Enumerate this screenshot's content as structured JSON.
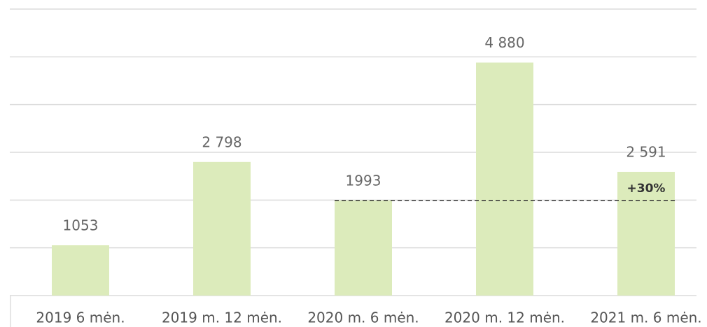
{
  "chart_data": {
    "type": "bar",
    "categories": [
      "2019 6 mėn.",
      "2019 m. 12 mėn.",
      "2020 m. 6 mėn.",
      "2020 m. 12 mėn.",
      "2021 m. 6 mėn."
    ],
    "values": [
      1053,
      2798,
      1993,
      4880,
      2591
    ],
    "value_labels": [
      "1053",
      "2 798",
      "1993",
      "4 880",
      "2 591"
    ],
    "color": "#dcebbb",
    "ylim": [
      0,
      6000
    ],
    "yticks": [
      0,
      1000,
      2000,
      3000,
      4000,
      5000,
      6000
    ],
    "grid": true,
    "annotation": "+30%"
  }
}
